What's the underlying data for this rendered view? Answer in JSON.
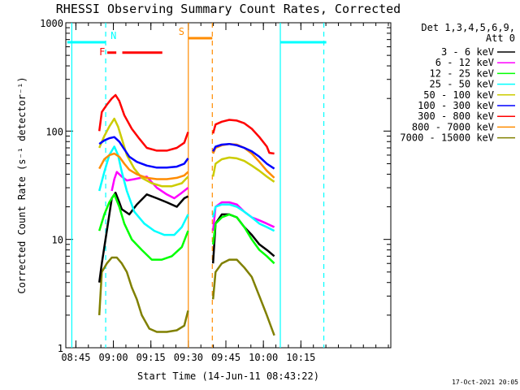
{
  "chart_data": {
    "type": "line",
    "title": "RHESSI Observing Summary Count Rates, Corrected",
    "xlabel": "Start Time (14-Jun-11 08:43:22)",
    "ylabel": "Corrected Count Rate (s⁻¹ detector⁻¹)",
    "y_scale": "log",
    "ylim": [
      1,
      1000
    ],
    "x_unit": "minutes after 08:43:22",
    "xlim": [
      -2.4,
      127.6
    ],
    "x_ticks": [
      {
        "at": 1.63,
        "label": "08:45"
      },
      {
        "at": 16.63,
        "label": "09:00"
      },
      {
        "at": 31.63,
        "label": "09:15"
      },
      {
        "at": 46.63,
        "label": "09:30"
      },
      {
        "at": 61.63,
        "label": "09:45"
      },
      {
        "at": 76.63,
        "label": "10:00"
      },
      {
        "at": 91.63,
        "label": "10:15"
      }
    ],
    "y_ticks": [
      {
        "at": 1,
        "label": "1"
      },
      {
        "at": 10,
        "label": "10"
      },
      {
        "at": 100,
        "label": "100"
      },
      {
        "at": 1000,
        "label": "1000"
      }
    ],
    "legend_header": [
      "Det 1,3,4,5,6,9,",
      "Att 0"
    ],
    "legend_position": "right",
    "series": [
      {
        "name": "3 - 6 keV",
        "color": "#000000",
        "segments": [
          {
            "x": [
              11,
              12,
              14,
              16,
              17.5,
              19,
              20,
              23,
              26,
              30,
              34,
              38,
              42,
              45,
              46.5
            ],
            "y": [
              4,
              6,
              12,
              24,
              27,
              22,
              19,
              17,
              21,
              26,
              24,
              22,
              20,
              24,
              25
            ]
          },
          {
            "x": [
              56.5,
              57.5,
              60,
              63,
              66,
              69,
              72,
              75,
              78,
              81
            ],
            "y": [
              6,
              14,
              17,
              17,
              16,
              13,
              11,
              9,
              8,
              7
            ]
          }
        ]
      },
      {
        "name": "6 - 12 keV",
        "color": "#ff00ff",
        "segments": [
          {
            "x": [
              16,
              17,
              18,
              20,
              22,
              25,
              30,
              34,
              38,
              41,
              44,
              46.5
            ],
            "y": [
              28,
              36,
              42,
              38,
              35,
              36,
              38,
              30,
              26,
              24,
              27,
              30
            ]
          },
          {
            "x": [
              56.5,
              57.5,
              60,
              63,
              66,
              69,
              72,
              75,
              78,
              81
            ],
            "y": [
              12,
              20,
              22,
              22,
              21,
              18,
              16,
              15,
              14,
              13
            ]
          }
        ]
      },
      {
        "name": "12 - 25 keV",
        "color": "#00ff00",
        "segments": [
          {
            "x": [
              11,
              13,
              15,
              17,
              19,
              21,
              24,
              28,
              32,
              36,
              40,
              44,
              46.5
            ],
            "y": [
              12,
              17,
              22,
              26,
              20,
              14,
              10,
              8,
              6.5,
              6.5,
              7,
              8.5,
              12
            ]
          },
          {
            "x": [
              56.5,
              57.5,
              60,
              63,
              66,
              69,
              72,
              75,
              78,
              81
            ],
            "y": [
              9,
              14,
              16,
              17,
              16,
              13,
              10,
              8,
              7,
              6
            ]
          }
        ]
      },
      {
        "name": "25 - 50 keV",
        "color": "#00ffff",
        "segments": [
          {
            "x": [
              11,
              13,
              15,
              17,
              18.5,
              20,
              22,
              25,
              29,
              33,
              37,
              41,
              44,
              46.5
            ],
            "y": [
              28,
              42,
              60,
              72,
              60,
              42,
              28,
              18,
              14,
              12,
              11,
              11,
              13,
              17
            ]
          },
          {
            "x": [
              56.5,
              57.5,
              60,
              63,
              66,
              69,
              72,
              75,
              78,
              81
            ],
            "y": [
              16,
              20,
              21,
              21,
              20,
              18,
              16,
              14,
              13,
              12
            ]
          }
        ]
      },
      {
        "name": "50 - 100 keV",
        "color": "#cccc00",
        "segments": [
          {
            "x": [
              11,
              13,
              15,
              17,
              18.5,
              20,
              22,
              25,
              28,
              32,
              36,
              40,
              44,
              46.5
            ],
            "y": [
              70,
              90,
              110,
              130,
              110,
              85,
              60,
              45,
              37,
              33,
              31,
              31,
              33,
              38
            ]
          },
          {
            "x": [
              56.5,
              57.5,
              60,
              63,
              66,
              69,
              72,
              75,
              78,
              81
            ],
            "y": [
              38,
              50,
              55,
              57,
              56,
              53,
              48,
              43,
              38,
              34
            ]
          }
        ]
      },
      {
        "name": "100 - 300 keV",
        "color": "#0000ff",
        "segments": [
          {
            "x": [
              11,
              13,
              15,
              17,
              19,
              21,
              23,
              26,
              30,
              34,
              38,
              42,
              45,
              46.5
            ],
            "y": [
              76,
              82,
              86,
              88,
              80,
              68,
              58,
              52,
              48,
              46,
              46,
              47,
              50,
              56
            ]
          },
          {
            "x": [
              56.5,
              57.5,
              60,
              63,
              66,
              69,
              72,
              75,
              78,
              81
            ],
            "y": [
              65,
              72,
              75,
              76,
              74,
              70,
              65,
              58,
              50,
              45
            ]
          }
        ]
      },
      {
        "name": "300 - 800 keV",
        "color": "#ff0000",
        "segments": [
          {
            "x": [
              11,
              12,
              14,
              16,
              17.5,
              19,
              21,
              24,
              27,
              30,
              34,
              38,
              42,
              45,
              46.5
            ],
            "y": [
              100,
              150,
              175,
              200,
              215,
              190,
              140,
              105,
              85,
              70,
              66,
              66,
              70,
              78,
              98
            ]
          },
          {
            "x": [
              56.5,
              57.5,
              60,
              63,
              66,
              69,
              72,
              75,
              78,
              79,
              81
            ],
            "y": [
              95,
              115,
              122,
              127,
              125,
              118,
              105,
              88,
              72,
              63,
              62
            ]
          }
        ]
      },
      {
        "name": "800 - 7000 keV",
        "color": "#ff8c00",
        "segments": [
          {
            "x": [
              11,
              13,
              15,
              17,
              19,
              21,
              23,
              26,
              30,
              34,
              38,
              42,
              45,
              46.5
            ],
            "y": [
              45,
              55,
              60,
              62,
              58,
              50,
              44,
              40,
              37,
              36,
              36,
              37,
              39,
              42
            ]
          },
          {
            "x": [
              56.5,
              57.5,
              60,
              63,
              66,
              69,
              72,
              75,
              78,
              81
            ],
            "y": [
              62,
              70,
              74,
              76,
              75,
              70,
              62,
              52,
              43,
              37
            ]
          }
        ]
      },
      {
        "name": "7000 - 15000 keV",
        "color": "#808000",
        "segments": [
          {
            "x": [
              11,
              12,
              14,
              16,
              18,
              20,
              22,
              24,
              26,
              28,
              31,
              34,
              38,
              42,
              45,
              46.5
            ],
            "y": [
              2,
              5,
              6,
              6.8,
              6.8,
              6,
              5,
              3.6,
              2.8,
              2,
              1.5,
              1.4,
              1.4,
              1.45,
              1.6,
              2.2
            ]
          },
          {
            "x": [
              56.5,
              57.5,
              60,
              63,
              66,
              69,
              72,
              75,
              78,
              80,
              81
            ],
            "y": [
              2.8,
              5,
              6,
              6.5,
              6.5,
              5.5,
              4.5,
              3,
              2,
              1.5,
              1.3
            ]
          }
        ]
      }
    ],
    "attenuator_vlines": [
      {
        "x": 0,
        "color": "#00ffff",
        "style": "solid"
      },
      {
        "x": 13.55,
        "color": "#00ffff",
        "style": "dashed"
      },
      {
        "x": 46.6,
        "color": "#ff8c00",
        "style": "solid"
      },
      {
        "x": 56.2,
        "color": "#ff8c00",
        "style": "dashed"
      },
      {
        "x": 83.4,
        "color": "#00ffff",
        "style": "solid"
      },
      {
        "x": 100.8,
        "color": "#00ffff",
        "style": "dashed"
      }
    ],
    "flag_bars": [
      {
        "label": "N",
        "color": "#00ffff",
        "y": 660,
        "segments": [
          [
            -1.8,
            13.55
          ],
          [
            83.4,
            101.8
          ]
        ]
      },
      {
        "label": "F",
        "color": "#ff0000",
        "y": 530,
        "segments": [
          [
            14.2,
            17.8
          ],
          [
            20.2,
            36.2
          ]
        ]
      },
      {
        "label": "S",
        "color": "#ff8c00",
        "y": 720,
        "segments": [
          [
            46.6,
            56.2
          ]
        ]
      }
    ]
  },
  "footer": {
    "date_stamp": "17-Oct-2021 20:05"
  }
}
